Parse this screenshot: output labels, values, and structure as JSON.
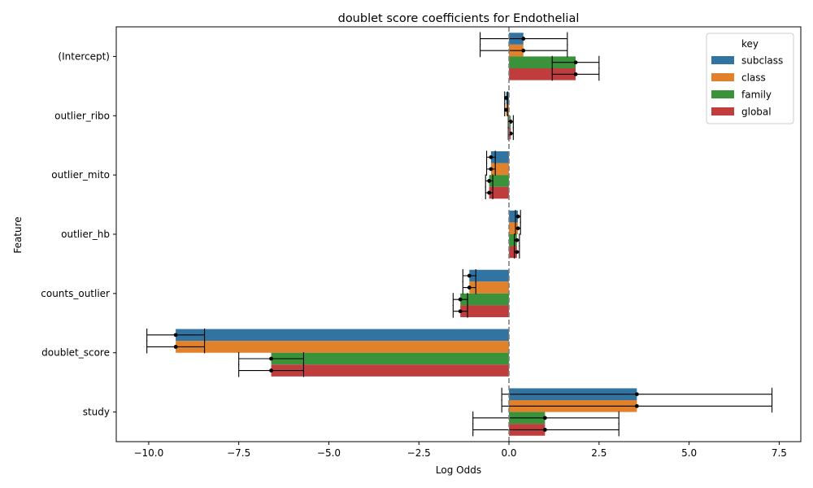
{
  "chart_data": {
    "type": "bar",
    "orientation": "horizontal",
    "title": "doublet score coefficients for Endothelial",
    "xlabel": "Log Odds",
    "ylabel": "Feature",
    "xlim": [
      -10.9,
      8.1
    ],
    "xticks": [
      -10.0,
      -7.5,
      -5.0,
      -2.5,
      0.0,
      2.5,
      5.0,
      7.5
    ],
    "xtick_labels": [
      "−10.0",
      "−7.5",
      "−5.0",
      "−2.5",
      "0.0",
      "2.5",
      "5.0",
      "7.5"
    ],
    "reference_line": 0,
    "grid": false,
    "legend": {
      "title": "key",
      "placement": "top-right"
    },
    "categories": [
      "(Intercept)",
      "outlier_ribo",
      "outlier_mito",
      "outlier_hb",
      "counts_outlier",
      "doublet_score",
      "study"
    ],
    "series": [
      {
        "name": "subclass",
        "color": "#3274a1",
        "values": [
          0.4,
          -0.08,
          -0.5,
          0.25,
          -1.1,
          -9.25,
          3.55
        ],
        "ci_low": [
          -0.8,
          -0.12,
          -0.62,
          0.18,
          -1.28,
          -10.05,
          -0.2
        ],
        "ci_high": [
          1.62,
          -0.04,
          -0.38,
          0.32,
          -0.92,
          -8.45,
          7.3
        ]
      },
      {
        "name": "class",
        "color": "#e1812c",
        "values": [
          0.4,
          -0.08,
          -0.5,
          0.25,
          -1.1,
          -9.25,
          3.55
        ],
        "ci_low": [
          -0.8,
          -0.12,
          -0.62,
          0.18,
          -1.28,
          -10.05,
          -0.2
        ],
        "ci_high": [
          1.62,
          -0.04,
          -0.38,
          0.32,
          -0.92,
          -8.45,
          7.3
        ]
      },
      {
        "name": "family",
        "color": "#3a923a",
        "values": [
          1.85,
          0.05,
          -0.55,
          0.22,
          -1.35,
          -6.6,
          1.0
        ],
        "ci_low": [
          1.2,
          -0.02,
          -0.65,
          0.15,
          -1.55,
          -7.5,
          -1.0
        ],
        "ci_high": [
          2.5,
          0.12,
          -0.45,
          0.29,
          -1.15,
          -5.7,
          3.05
        ]
      },
      {
        "name": "global",
        "color": "#c03d3e",
        "values": [
          1.85,
          0.05,
          -0.55,
          0.22,
          -1.35,
          -6.6,
          1.0
        ],
        "ci_low": [
          1.2,
          -0.02,
          -0.65,
          0.15,
          -1.55,
          -7.5,
          -1.0
        ],
        "ci_high": [
          2.5,
          0.12,
          -0.45,
          0.29,
          -1.15,
          -5.7,
          3.05
        ]
      }
    ]
  }
}
